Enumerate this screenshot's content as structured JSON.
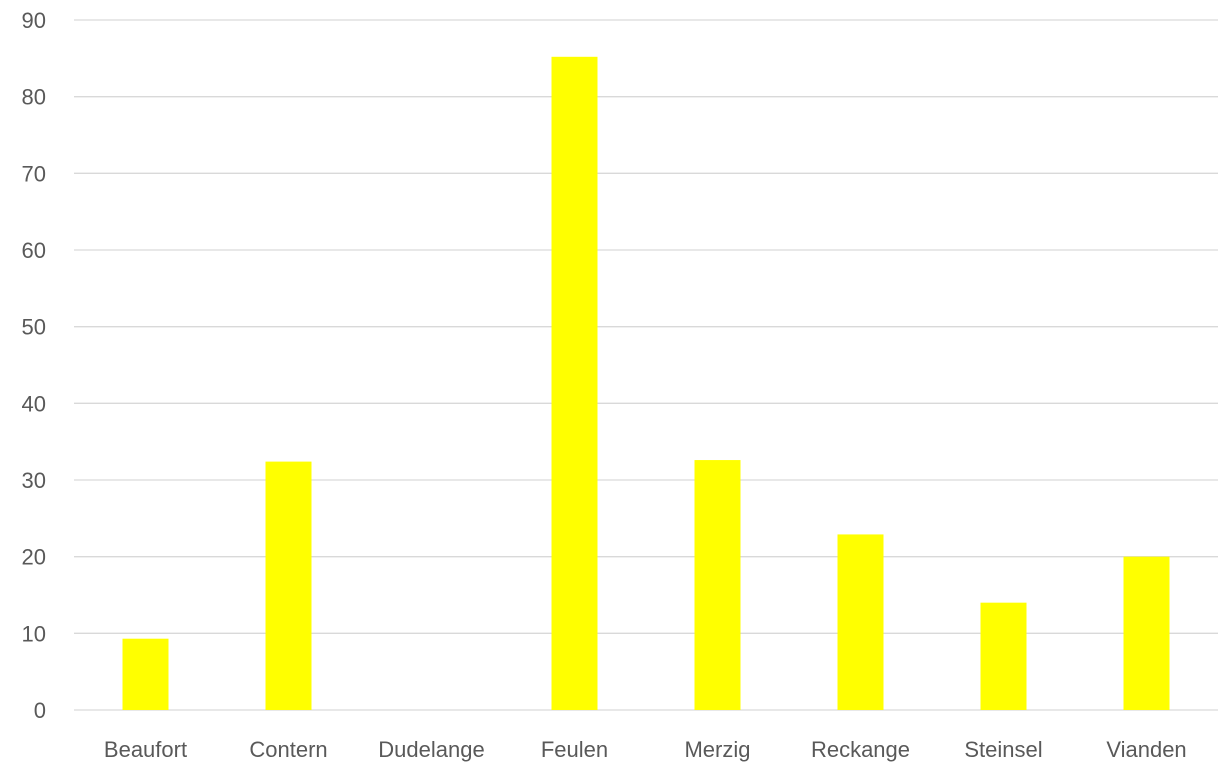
{
  "chart_data": {
    "type": "bar",
    "title": "",
    "xlabel": "",
    "ylabel": "",
    "categories": [
      "Beaufort",
      "Contern",
      "Dudelange",
      "Feulen",
      "Merzig",
      "Reckange",
      "Steinsel",
      "Vianden"
    ],
    "values": [
      9.3,
      32.4,
      0,
      85.2,
      32.6,
      22.9,
      14.0,
      20.0
    ],
    "ylim": [
      0,
      90
    ],
    "yticks": [
      0,
      10,
      20,
      30,
      40,
      50,
      60,
      70,
      80,
      90
    ],
    "grid": true,
    "legend": "none",
    "colors": {
      "bar": "#FFFF00",
      "grid": "#D9D9D9",
      "text": "#595959"
    }
  }
}
